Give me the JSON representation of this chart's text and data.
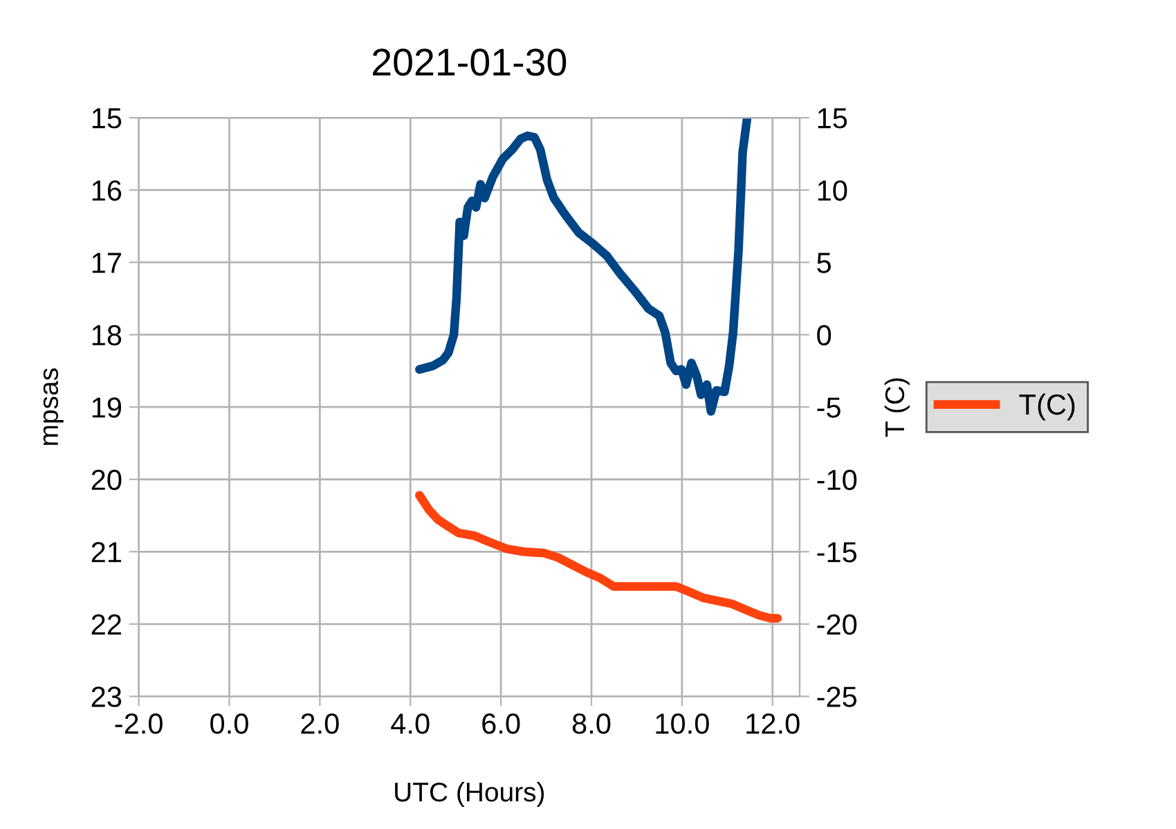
{
  "chart_data": {
    "type": "line",
    "title": "2021-01-30",
    "xlabel": "UTC (Hours)",
    "ylabel": "mpsas",
    "y2label": "T (C)",
    "xlim": [
      -2,
      12.6
    ],
    "xticks": [
      {
        "value": -2,
        "label": "-2.0"
      },
      {
        "value": 0,
        "label": "0.0"
      },
      {
        "value": 2,
        "label": "2.0"
      },
      {
        "value": 4,
        "label": "4.0"
      },
      {
        "value": 6,
        "label": "6.0"
      },
      {
        "value": 8,
        "label": "8.0"
      },
      {
        "value": 10,
        "label": "10.0"
      },
      {
        "value": 12,
        "label": "12.0"
      }
    ],
    "ylim": [
      23,
      15
    ],
    "yticks": [
      15,
      16,
      17,
      18,
      19,
      20,
      21,
      22,
      23
    ],
    "y2lim": [
      -25,
      15
    ],
    "y2ticks": [
      15,
      10,
      5,
      0,
      -5,
      -10,
      -15,
      -20,
      -25
    ],
    "grid": true,
    "legend": "right",
    "line_style": "solid",
    "marker": "none",
    "series": [
      {
        "color": "#004586",
        "x": [
          4.2,
          4.5,
          4.72,
          4.84,
          4.96,
          5.02,
          5.09,
          5.18,
          5.27,
          5.36,
          5.45,
          5.55,
          5.64,
          5.82,
          6.04,
          6.25,
          6.44,
          6.59,
          6.74,
          6.87,
          7.02,
          7.17,
          7.42,
          7.72,
          8.03,
          8.34,
          8.64,
          8.95,
          9.26,
          9.5,
          9.63,
          9.75,
          9.87,
          9.99,
          10.09,
          10.21,
          10.33,
          10.42,
          10.55,
          10.64,
          10.76,
          10.94,
          11.04,
          11.13,
          11.25,
          11.34,
          11.44
        ],
        "values": [
          18.48,
          18.43,
          18.35,
          18.25,
          18.0,
          17.49,
          16.44,
          16.63,
          16.24,
          16.15,
          16.24,
          15.92,
          16.11,
          15.82,
          15.57,
          15.44,
          15.29,
          15.25,
          15.27,
          15.44,
          15.86,
          16.11,
          16.34,
          16.59,
          16.74,
          16.91,
          17.16,
          17.39,
          17.64,
          17.74,
          17.97,
          18.39,
          18.5,
          18.48,
          18.69,
          18.39,
          18.58,
          18.83,
          18.69,
          19.06,
          18.77,
          18.79,
          18.44,
          17.97,
          16.82,
          15.48,
          15.0
        ]
      },
      {
        "name": "T(C)",
        "color": "#ff420e",
        "axis": "y2",
        "x": [
          4.2,
          4.41,
          4.6,
          4.81,
          5.06,
          5.42,
          5.64,
          5.88,
          6.13,
          6.5,
          6.96,
          7.26,
          7.57,
          7.88,
          8.18,
          8.49,
          8.95,
          9.87,
          10.18,
          10.48,
          10.79,
          11.1,
          11.4,
          11.71,
          11.96,
          12.11
        ],
        "values": [
          -11.1,
          -12.1,
          -12.75,
          -13.2,
          -13.7,
          -13.9,
          -14.2,
          -14.5,
          -14.8,
          -15.0,
          -15.1,
          -15.4,
          -15.9,
          -16.4,
          -16.8,
          -17.4,
          -17.4,
          -17.4,
          -17.8,
          -18.2,
          -18.4,
          -18.6,
          -19.0,
          -19.4,
          -19.6,
          -19.6
        ]
      }
    ]
  }
}
